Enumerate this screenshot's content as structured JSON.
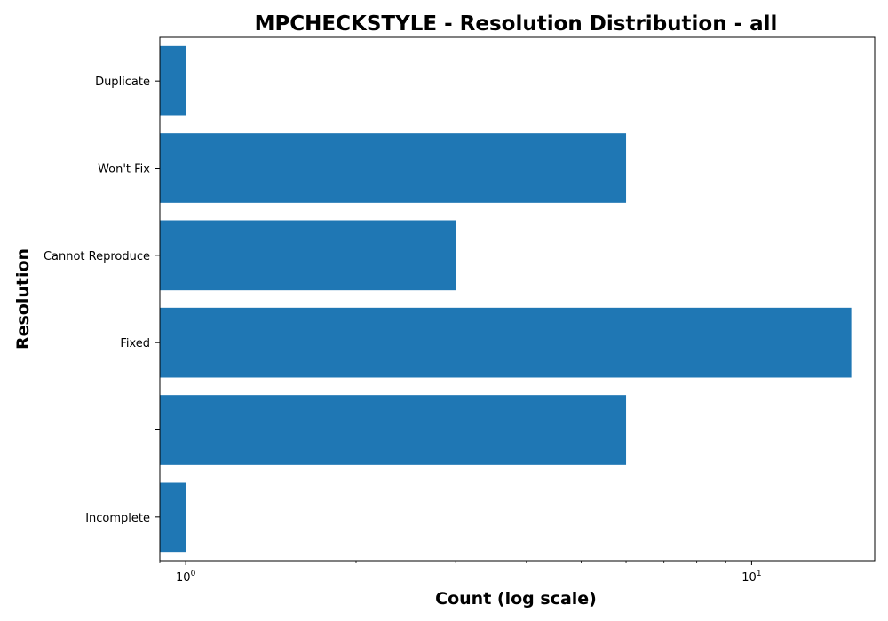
{
  "chart_data": {
    "type": "bar",
    "orientation": "horizontal",
    "title": "MPCHECKSTYLE - Resolution Distribution - all",
    "xlabel": "Count (log scale)",
    "ylabel": "Resolution",
    "x_scale": "log",
    "xlim": [
      0.9,
      16.5
    ],
    "x_major_ticks": [
      {
        "value": 1,
        "base": "10",
        "exp": "0"
      },
      {
        "value": 10,
        "base": "10",
        "exp": "1"
      }
    ],
    "categories": [
      "Duplicate",
      "Won't Fix",
      "Cannot Reproduce",
      "Fixed",
      "",
      "Incomplete"
    ],
    "values": [
      1,
      6,
      3,
      15,
      6,
      1
    ],
    "bar_color": "#1f77b4",
    "grid": false,
    "legend": "none"
  }
}
